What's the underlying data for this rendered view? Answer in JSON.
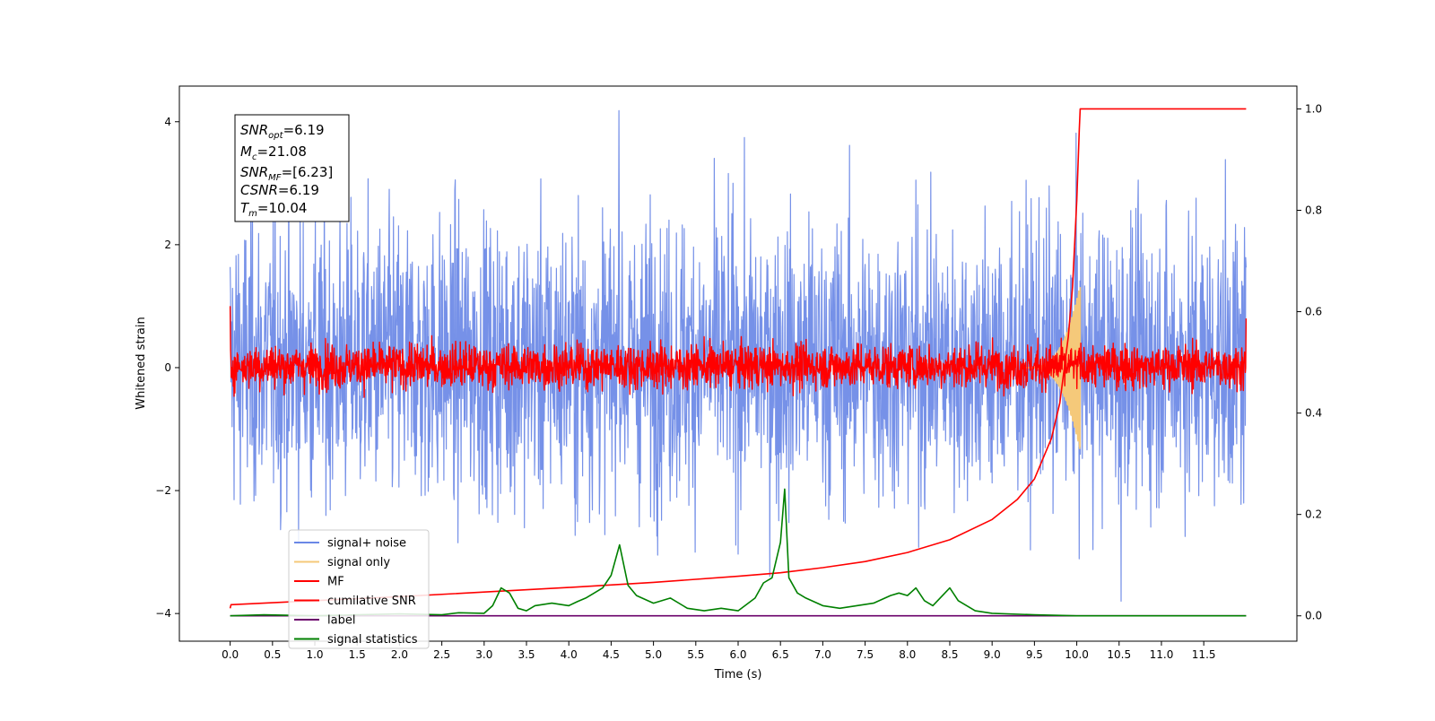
{
  "chart_data": {
    "type": "line",
    "title": "",
    "xlabel": "Time (s)",
    "ylabel": "Whitened strain",
    "ylabel_right": "",
    "xlim": [
      -0.6,
      12.6
    ],
    "ylim": [
      -4.45,
      4.58
    ],
    "ylim_right": [
      -0.05,
      1.045
    ],
    "xticks": [
      "0.0",
      "0.5",
      "1.0",
      "1.5",
      "2.0",
      "2.5",
      "3.0",
      "3.5",
      "4.0",
      "4.5",
      "5.0",
      "5.5",
      "6.0",
      "6.5",
      "7.0",
      "7.5",
      "8.0",
      "8.5",
      "9.0",
      "9.5",
      "10.0",
      "10.5",
      "11.0",
      "11.5"
    ],
    "yticks": [
      "−4",
      "−2",
      "0",
      "2",
      "4"
    ],
    "yticks_right": [
      "0.0",
      "0.2",
      "0.4",
      "0.6",
      "0.8",
      "1.0"
    ],
    "legend_position": "lower-left",
    "annotation": {
      "snr_opt": {
        "base": "SNR",
        "sub": "opt",
        "value": "=6.19"
      },
      "mc": {
        "base": "M",
        "sub": "c",
        "value": "=21.08"
      },
      "snr_mf": {
        "base": "SNR",
        "sub": "MF",
        "value": "=[6.23]"
      },
      "csnr": {
        "base": "CSNR",
        "sub": "",
        "value": "=6.19"
      },
      "tm": {
        "base": "T",
        "sub": "m",
        "value": "=10.04"
      }
    },
    "series": [
      {
        "name": "signal+ noise",
        "color": "#6a88e6",
        "axis": "left",
        "kind": "noise",
        "x_start": 0.0,
        "x_end": 12.0,
        "envelope": [
          -2.0,
          2.2
        ],
        "extrema": [
          -3.8,
          4.18
        ]
      },
      {
        "name": "signal only",
        "color": "#f5c97a",
        "axis": "left",
        "kind": "chirp",
        "x_start": 9.4,
        "x_end": 10.04,
        "peak_amplitude": 1.35
      },
      {
        "name": "MF",
        "color": "#ff0000",
        "axis": "left",
        "kind": "noise",
        "x_start": 0.0,
        "x_end": 12.0,
        "envelope": [
          -0.3,
          0.35
        ],
        "edge_values": [
          1.0,
          0.8
        ]
      },
      {
        "name": "cumilative SNR",
        "color": "#ff0000",
        "axis": "right",
        "kind": "curve",
        "x": [
          0.0,
          0.01,
          1.0,
          2.0,
          3.0,
          4.0,
          5.0,
          6.0,
          6.5,
          7.0,
          7.5,
          8.0,
          8.5,
          9.0,
          9.3,
          9.5,
          9.7,
          9.8,
          9.9,
          9.95,
          10.0,
          10.03,
          10.04,
          12.0
        ],
        "y": [
          0.015,
          0.022,
          0.03,
          0.038,
          0.047,
          0.056,
          0.066,
          0.078,
          0.085,
          0.095,
          0.107,
          0.125,
          0.15,
          0.19,
          0.23,
          0.27,
          0.35,
          0.42,
          0.55,
          0.65,
          0.82,
          0.96,
          1.0,
          1.0
        ]
      },
      {
        "name": "label",
        "color": "#6a006a",
        "axis": "right",
        "kind": "curve",
        "x": [
          0.0,
          12.0
        ],
        "y": [
          0.0,
          0.0
        ]
      },
      {
        "name": "signal statistics",
        "color": "#008000",
        "axis": "right",
        "kind": "curve",
        "x": [
          0.0,
          0.4,
          1.0,
          1.5,
          2.0,
          2.5,
          2.7,
          3.0,
          3.1,
          3.2,
          3.3,
          3.4,
          3.5,
          3.6,
          3.8,
          4.0,
          4.1,
          4.2,
          4.3,
          4.4,
          4.5,
          4.6,
          4.7,
          4.8,
          5.0,
          5.2,
          5.4,
          5.6,
          5.8,
          6.0,
          6.2,
          6.3,
          6.4,
          6.5,
          6.55,
          6.6,
          6.7,
          6.8,
          7.0,
          7.2,
          7.4,
          7.6,
          7.8,
          7.9,
          8.0,
          8.1,
          8.2,
          8.3,
          8.5,
          8.6,
          8.8,
          9.0,
          9.5,
          10.0,
          11.0,
          12.0
        ],
        "y": [
          0.0,
          0.002,
          0.0,
          0.002,
          0.004,
          0.002,
          0.006,
          0.005,
          0.02,
          0.055,
          0.045,
          0.015,
          0.01,
          0.02,
          0.025,
          0.02,
          0.028,
          0.035,
          0.045,
          0.055,
          0.08,
          0.14,
          0.06,
          0.04,
          0.025,
          0.035,
          0.015,
          0.01,
          0.015,
          0.01,
          0.035,
          0.065,
          0.075,
          0.145,
          0.25,
          0.075,
          0.045,
          0.035,
          0.02,
          0.015,
          0.02,
          0.025,
          0.04,
          0.045,
          0.04,
          0.055,
          0.03,
          0.02,
          0.055,
          0.03,
          0.01,
          0.005,
          0.002,
          0.0,
          0.0,
          0.0
        ]
      }
    ]
  }
}
